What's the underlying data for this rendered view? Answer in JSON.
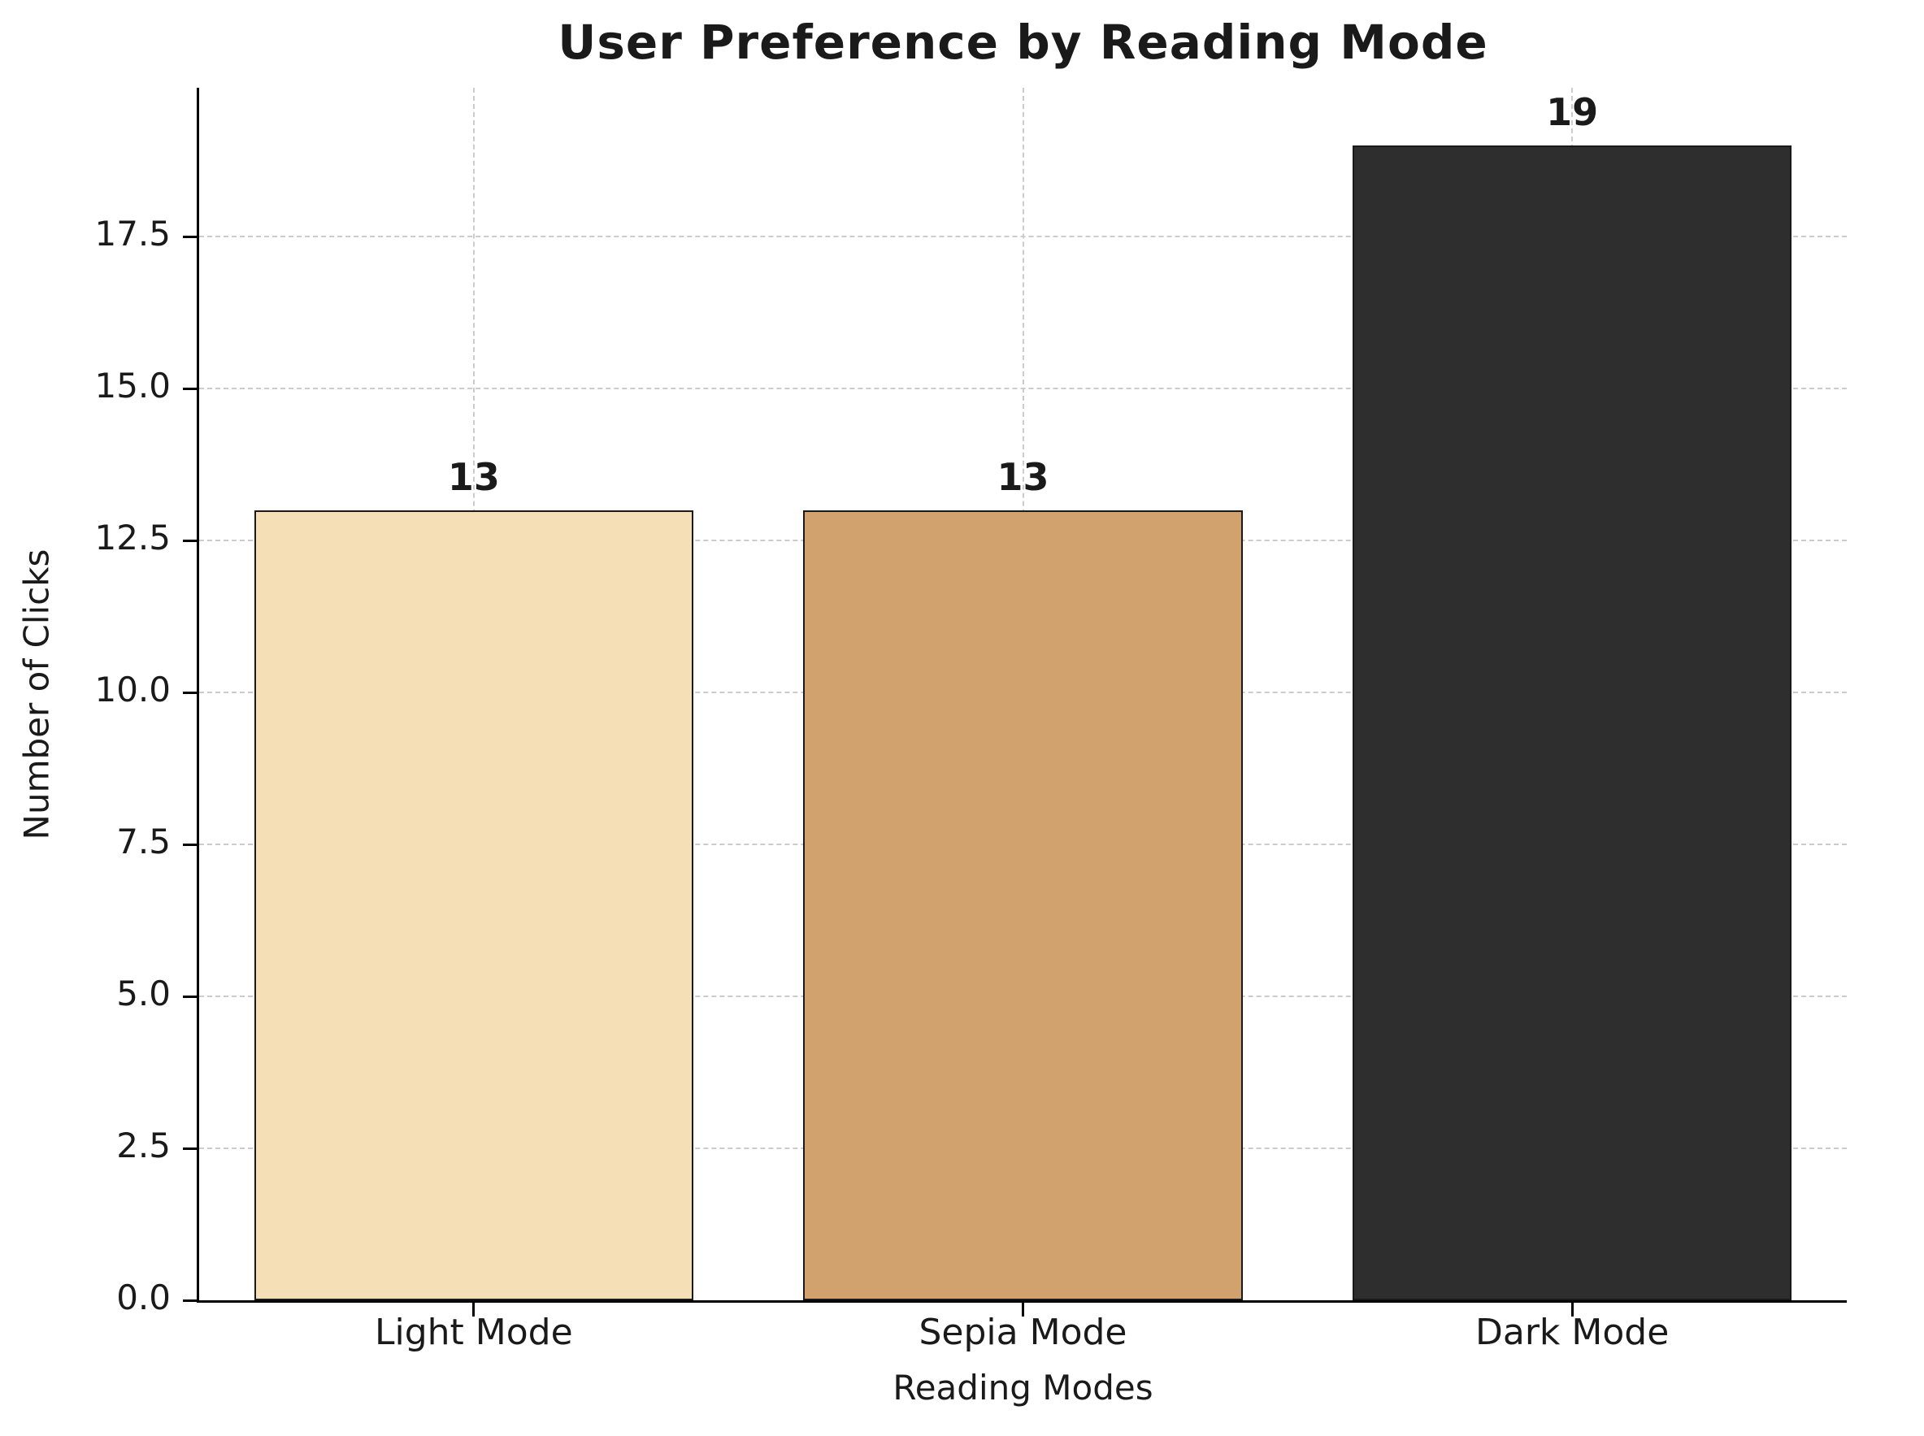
{
  "chart_data": {
    "type": "bar",
    "title": "User Preference by Reading Mode",
    "xlabel": "Reading Modes",
    "ylabel": "Number of Clicks",
    "categories": [
      "Light Mode",
      "Sepia Mode",
      "Dark Mode"
    ],
    "values": [
      13,
      13,
      19
    ],
    "value_labels": [
      "13",
      "13",
      "19"
    ],
    "bar_colors": [
      "#F5DFB6",
      "#D2A26E",
      "#2E2E2E"
    ],
    "bar_edge_color": "#1a1a1a",
    "ylim": [
      0,
      19.95
    ],
    "yticks": [
      0.0,
      2.5,
      5.0,
      7.5,
      10.0,
      12.5,
      15.0,
      17.5
    ],
    "ytick_labels": [
      "0.0",
      "2.5",
      "5.0",
      "7.5",
      "10.0",
      "12.5",
      "15.0",
      "17.5"
    ],
    "grid": true,
    "grid_style": "dashed",
    "grid_color": "#cccccc",
    "legend": "none",
    "background": "#ffffff"
  }
}
